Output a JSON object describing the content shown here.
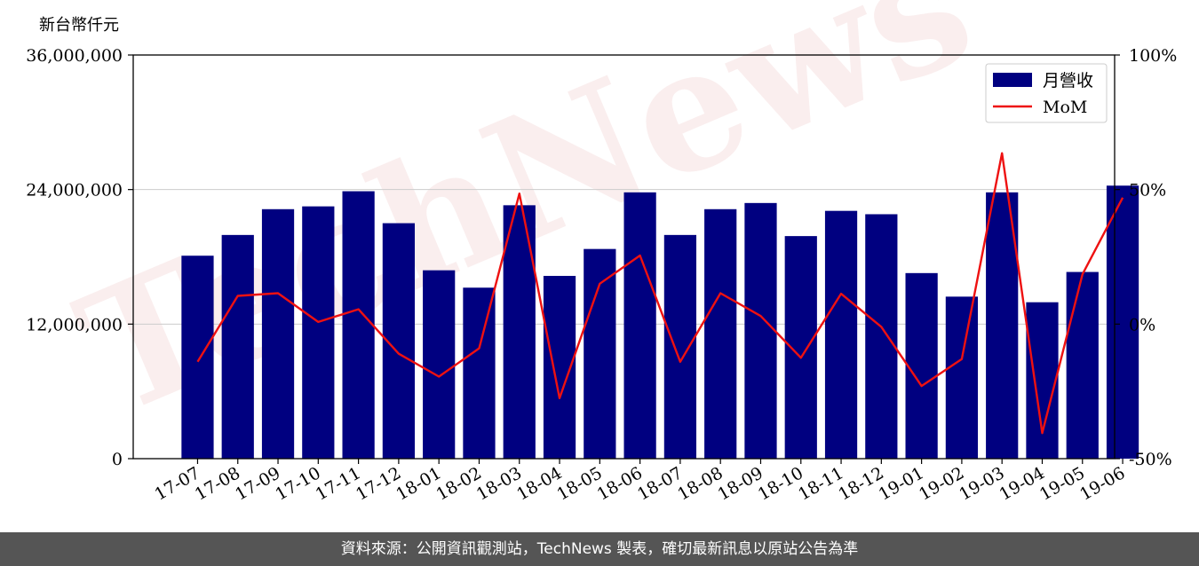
{
  "unit_label": "新台幣仟元",
  "footer_text": "資料來源：公開資訊觀測站，TechNews 製表，確切最新訊息以原站公告為準",
  "watermark_text": "TechNews",
  "colors": {
    "bar": "#000080",
    "line": "#ee1111",
    "grid": "#cccccc",
    "footer_bg": "#555555"
  },
  "chart_data": {
    "type": "bar+line",
    "categories": [
      "17-07",
      "17-08",
      "17-09",
      "17-10",
      "17-11",
      "17-12",
      "18-01",
      "18-02",
      "18-03",
      "18-04",
      "18-05",
      "18-06",
      "18-07",
      "18-08",
      "18-09",
      "18-10",
      "18-11",
      "18-12",
      "19-01",
      "19-02",
      "19-03",
      "19-04",
      "19-05",
      "19-06"
    ],
    "series": [
      {
        "name": "月營收",
        "type": "bar",
        "axis": "left",
        "values": [
          18100000,
          19950000,
          22250000,
          22500000,
          23850000,
          21000000,
          16800000,
          15250000,
          22600000,
          16300000,
          18700000,
          23750000,
          19950000,
          22250000,
          22800000,
          19850000,
          22100000,
          21800000,
          16550000,
          14450000,
          23750000,
          13950000,
          16650000,
          24350000
        ]
      },
      {
        "name": "MoM",
        "type": "line",
        "axis": "right",
        "values": [
          -14,
          10.5,
          11.5,
          0.8,
          5.5,
          -11,
          -19.5,
          -9,
          48.5,
          -27.5,
          15,
          25.5,
          -14,
          11.5,
          3,
          -12.5,
          11.3,
          -1,
          -23,
          -13,
          63.5,
          -40.5,
          18.5,
          47
        ]
      }
    ],
    "y_left": {
      "min": 0,
      "max": 36000000,
      "ticks": [
        0,
        12000000,
        24000000,
        36000000
      ],
      "tick_labels": [
        "0",
        "12,000,000",
        "24,000,000",
        "36,000,000"
      ]
    },
    "y_right": {
      "min": -50,
      "max": 100,
      "ticks": [
        -50,
        0,
        50,
        100
      ],
      "tick_labels": [
        "-50%",
        "0%",
        "50%",
        "100%"
      ]
    },
    "legend": {
      "placement": "top-right",
      "entries": [
        "月營收",
        "MoM"
      ]
    },
    "grid": true
  }
}
